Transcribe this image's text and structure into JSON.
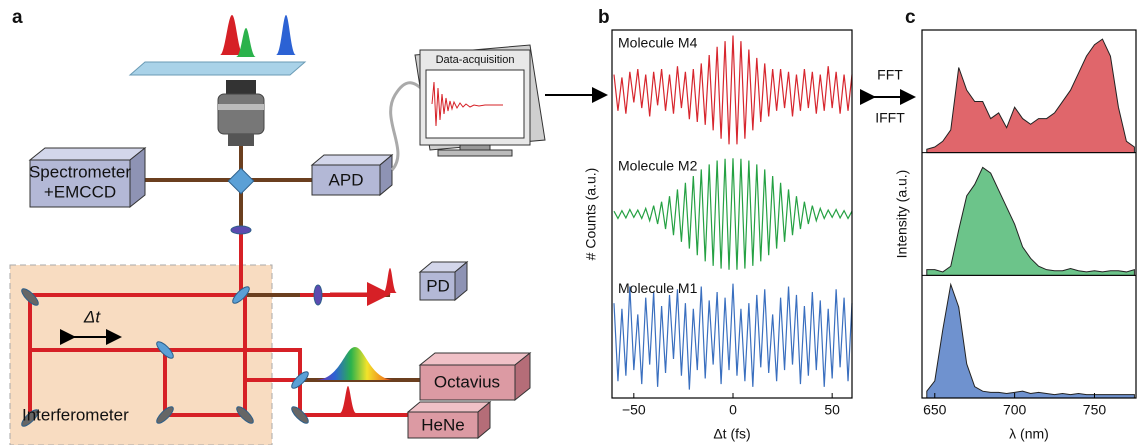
{
  "diagram": {
    "panel": "a",
    "spectrometer": [
      "Spectrometer",
      "+EMCCD"
    ],
    "apd": "APD",
    "data_acquisition": "Data-acquisition",
    "pd": "PD",
    "delay": "Δt",
    "octavius": "Octavius",
    "hene": "HeNe",
    "interferometer": "Interferometer",
    "fft": "FFT",
    "ifft": "IFFT"
  },
  "chart_data": [
    {
      "type": "line",
      "panel": "b",
      "xlabel": "Δt (fs)",
      "ylabel": "# Counts (a.u.)",
      "xlim": [
        -61,
        60
      ],
      "xticks": [
        {
          "value": -50,
          "label": "−50"
        },
        0,
        50
      ],
      "ylim": [
        -1.1,
        1.1
      ],
      "x": [
        -60,
        -58,
        -56,
        -54,
        -52,
        -50,
        -48,
        -46,
        -44,
        -42,
        -40,
        -38,
        -36,
        -34,
        -32,
        -30,
        -28,
        -26,
        -24,
        -22,
        -20,
        -18,
        -16,
        -14,
        -12,
        -10,
        -8,
        -6,
        -4,
        -2,
        0,
        2,
        4,
        6,
        8,
        10,
        12,
        14,
        16,
        18,
        20,
        22,
        24,
        26,
        28,
        30,
        32,
        34,
        36,
        38,
        40,
        42,
        44,
        46,
        48,
        50,
        52,
        54,
        56,
        58,
        60
      ],
      "series": [
        {
          "name": "Molecule M4",
          "color": "#d7262e",
          "values": [
            0.3,
            -0.35,
            0.25,
            -0.4,
            0.35,
            -0.2,
            0.4,
            -0.3,
            0.3,
            -0.45,
            0.35,
            -0.25,
            0.4,
            -0.35,
            0.3,
            -0.4,
            0.45,
            -0.3,
            0.35,
            -0.5,
            0.4,
            -0.55,
            0.5,
            -0.6,
            0.65,
            -0.7,
            0.8,
            -0.85,
            0.9,
            -0.95,
            1.0,
            -0.95,
            0.9,
            -0.85,
            0.75,
            -0.7,
            0.6,
            -0.55,
            0.5,
            -0.45,
            0.4,
            -0.35,
            0.4,
            -0.3,
            0.35,
            -0.45,
            0.3,
            -0.35,
            0.4,
            -0.3,
            0.35,
            -0.4,
            0.3,
            -0.35,
            0.45,
            -0.3,
            0.35,
            -0.4,
            0.3,
            -0.35,
            0.3
          ]
        },
        {
          "name": "Molecule M2",
          "color": "#25a143",
          "values": [
            0.05,
            -0.08,
            0.06,
            -0.07,
            0.08,
            -0.06,
            0.07,
            -0.08,
            0.1,
            -0.12,
            0.15,
            -0.18,
            0.22,
            -0.27,
            0.32,
            -0.38,
            0.44,
            -0.5,
            0.56,
            -0.62,
            0.68,
            -0.74,
            0.8,
            -0.85,
            0.89,
            -0.93,
            0.96,
            -0.98,
            0.99,
            -1.0,
            1.0,
            -1.0,
            0.99,
            -0.98,
            0.96,
            -0.93,
            0.89,
            -0.85,
            0.8,
            -0.74,
            0.68,
            -0.62,
            0.56,
            -0.5,
            0.44,
            -0.38,
            0.32,
            -0.27,
            0.22,
            -0.18,
            0.15,
            -0.12,
            0.1,
            -0.08,
            0.07,
            -0.06,
            0.08,
            -0.07,
            0.06,
            -0.08,
            0.05
          ]
        },
        {
          "name": "Molecule M1",
          "color": "#3a6fbf",
          "values": [
            0.6,
            -0.8,
            0.5,
            -0.7,
            0.9,
            -0.6,
            0.4,
            -0.85,
            0.7,
            -0.5,
            0.8,
            -0.9,
            0.55,
            -0.65,
            0.75,
            -0.4,
            0.85,
            -0.7,
            0.6,
            -0.95,
            0.5,
            -0.6,
            0.9,
            -0.75,
            0.65,
            -0.5,
            0.8,
            -0.85,
            0.7,
            -0.6,
            0.95,
            -0.7,
            0.5,
            -0.8,
            0.6,
            -0.9,
            0.75,
            -0.55,
            0.85,
            -0.65,
            0.4,
            -0.8,
            0.7,
            -0.6,
            0.9,
            -0.5,
            0.75,
            -0.85,
            0.55,
            -0.7,
            0.8,
            -0.6,
            0.65,
            -0.9,
            0.5,
            -0.75,
            0.85,
            -0.55,
            0.7,
            -0.8,
            0.6
          ]
        }
      ]
    },
    {
      "type": "area",
      "panel": "c",
      "xlabel": "λ (nm)",
      "ylabel": "Intensity (a.u.)",
      "xlim": [
        642,
        776
      ],
      "xticks": [
        650,
        700,
        750
      ],
      "ylim": [
        0,
        1.08
      ],
      "x": [
        645,
        650,
        655,
        660,
        665,
        670,
        675,
        680,
        685,
        690,
        695,
        700,
        705,
        710,
        715,
        720,
        725,
        730,
        735,
        740,
        745,
        750,
        755,
        760,
        765,
        770,
        775
      ],
      "series": [
        {
          "color": "#e0666b",
          "values": [
            0.03,
            0.05,
            0.1,
            0.2,
            0.75,
            0.55,
            0.45,
            0.45,
            0.3,
            0.35,
            0.22,
            0.4,
            0.3,
            0.25,
            0.3,
            0.3,
            0.35,
            0.45,
            0.55,
            0.7,
            0.85,
            0.95,
            1.0,
            0.85,
            0.4,
            0.1,
            0.05
          ]
        },
        {
          "color": "#6cc48a",
          "values": [
            0.05,
            0.05,
            0.03,
            0.08,
            0.4,
            0.7,
            0.8,
            0.95,
            0.9,
            0.75,
            0.6,
            0.45,
            0.25,
            0.15,
            0.08,
            0.05,
            0.04,
            0.04,
            0.06,
            0.04,
            0.03,
            0.04,
            0.03,
            0.04,
            0.04,
            0.03,
            0.05
          ]
        },
        {
          "color": "#6f92cf",
          "values": [
            0.06,
            0.15,
            0.6,
            1.0,
            0.8,
            0.3,
            0.1,
            0.06,
            0.05,
            0.05,
            0.04,
            0.05,
            0.06,
            0.04,
            0.05,
            0.04,
            0.03,
            0.04,
            0.03,
            0.04,
            0.03,
            0.03,
            0.03,
            0.03,
            0.03,
            0.03,
            0.03
          ]
        }
      ]
    }
  ]
}
